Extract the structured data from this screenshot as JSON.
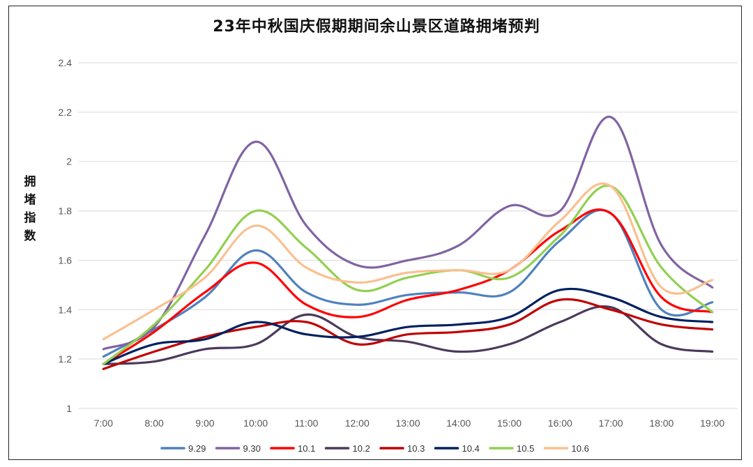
{
  "chart_data": {
    "type": "line",
    "title": "23年中秋国庆假期期间余山景区道路拥堵预判",
    "ylabel": "拥堵指数",
    "xlabel": "",
    "ylim": [
      1,
      2.4
    ],
    "yticks": [
      "1",
      "1.2",
      "1.4",
      "1.6",
      "1.8",
      "2",
      "2.2",
      "2.4"
    ],
    "categories": [
      "7:00",
      "8:00",
      "9:00",
      "10:00",
      "11:00",
      "12:00",
      "13:00",
      "14:00",
      "15:00",
      "16:00",
      "17:00",
      "18:00",
      "19:00"
    ],
    "grid": true,
    "legend_position": "bottom",
    "series": [
      {
        "name": "9.29",
        "color": "#4f81bd",
        "values": [
          1.21,
          1.32,
          1.45,
          1.64,
          1.47,
          1.42,
          1.46,
          1.47,
          1.47,
          1.68,
          1.79,
          1.4,
          1.43
        ]
      },
      {
        "name": "9.30",
        "color": "#8064a2",
        "values": [
          1.24,
          1.33,
          1.7,
          2.08,
          1.74,
          1.58,
          1.6,
          1.66,
          1.82,
          1.8,
          2.18,
          1.66,
          1.49
        ]
      },
      {
        "name": "10.1",
        "color": "#ff0000",
        "values": [
          1.18,
          1.31,
          1.47,
          1.59,
          1.42,
          1.37,
          1.44,
          1.48,
          1.56,
          1.72,
          1.79,
          1.45,
          1.39
        ]
      },
      {
        "name": "10.2",
        "color": "#4b3a5c",
        "values": [
          1.18,
          1.19,
          1.24,
          1.26,
          1.38,
          1.29,
          1.27,
          1.23,
          1.26,
          1.35,
          1.41,
          1.26,
          1.23
        ]
      },
      {
        "name": "10.3",
        "color": "#c00000",
        "values": [
          1.16,
          1.23,
          1.29,
          1.33,
          1.35,
          1.26,
          1.3,
          1.31,
          1.34,
          1.44,
          1.4,
          1.34,
          1.32
        ]
      },
      {
        "name": "10.4",
        "color": "#002060",
        "values": [
          1.18,
          1.26,
          1.28,
          1.35,
          1.3,
          1.29,
          1.33,
          1.34,
          1.37,
          1.48,
          1.45,
          1.37,
          1.35
        ]
      },
      {
        "name": "10.5",
        "color": "#92d050",
        "values": [
          1.18,
          1.34,
          1.56,
          1.8,
          1.65,
          1.48,
          1.53,
          1.56,
          1.53,
          1.7,
          1.9,
          1.57,
          1.39
        ]
      },
      {
        "name": "10.6",
        "color": "#fac090",
        "values": [
          1.28,
          1.4,
          1.53,
          1.74,
          1.57,
          1.51,
          1.55,
          1.56,
          1.56,
          1.76,
          1.9,
          1.49,
          1.52
        ]
      }
    ]
  }
}
